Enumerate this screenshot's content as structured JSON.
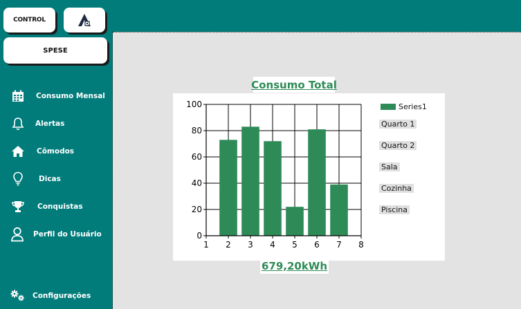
{
  "header": {
    "control_label": "CONTROL",
    "logo_icon": "house-a-logo-icon",
    "spese_label": "SPESE"
  },
  "sidebar": {
    "items": [
      {
        "label": "Consumo Mensal",
        "icon": "calendar-icon"
      },
      {
        "label": "Alertas",
        "icon": "bell-icon"
      },
      {
        "label": "Cômodos",
        "icon": "home-icon"
      },
      {
        "label": "Dicas",
        "icon": "lightbulb-icon"
      },
      {
        "label": "Conquistas",
        "icon": "trophy-icon"
      },
      {
        "label": "Perfil do Usuário",
        "icon": "user-icon"
      }
    ],
    "settings": {
      "label": "Configurações",
      "icon": "gears-icon"
    }
  },
  "colors": {
    "teal": "#017c7b",
    "bar_green": "#2e8b57",
    "background": "#e3e3e3"
  },
  "chart": {
    "title": "Consumo Total",
    "total": "679,20kWh",
    "rooms": [
      "Quarto 1",
      "Quarto 2",
      "Sala",
      "Cozinha",
      "Piscina"
    ]
  },
  "chart_data": {
    "type": "bar",
    "x": [
      2,
      3,
      4,
      5,
      6,
      7
    ],
    "series": [
      {
        "name": "Series1",
        "values": [
          73,
          83,
          72,
          22,
          81,
          39
        ]
      }
    ],
    "xlim": [
      1,
      8
    ],
    "ylim": [
      0,
      100
    ],
    "xticks": [
      1,
      2,
      3,
      4,
      5,
      6,
      7,
      8
    ],
    "yticks": [
      0,
      20,
      40,
      60,
      80,
      100
    ],
    "grid": true,
    "legend": "top-right"
  }
}
